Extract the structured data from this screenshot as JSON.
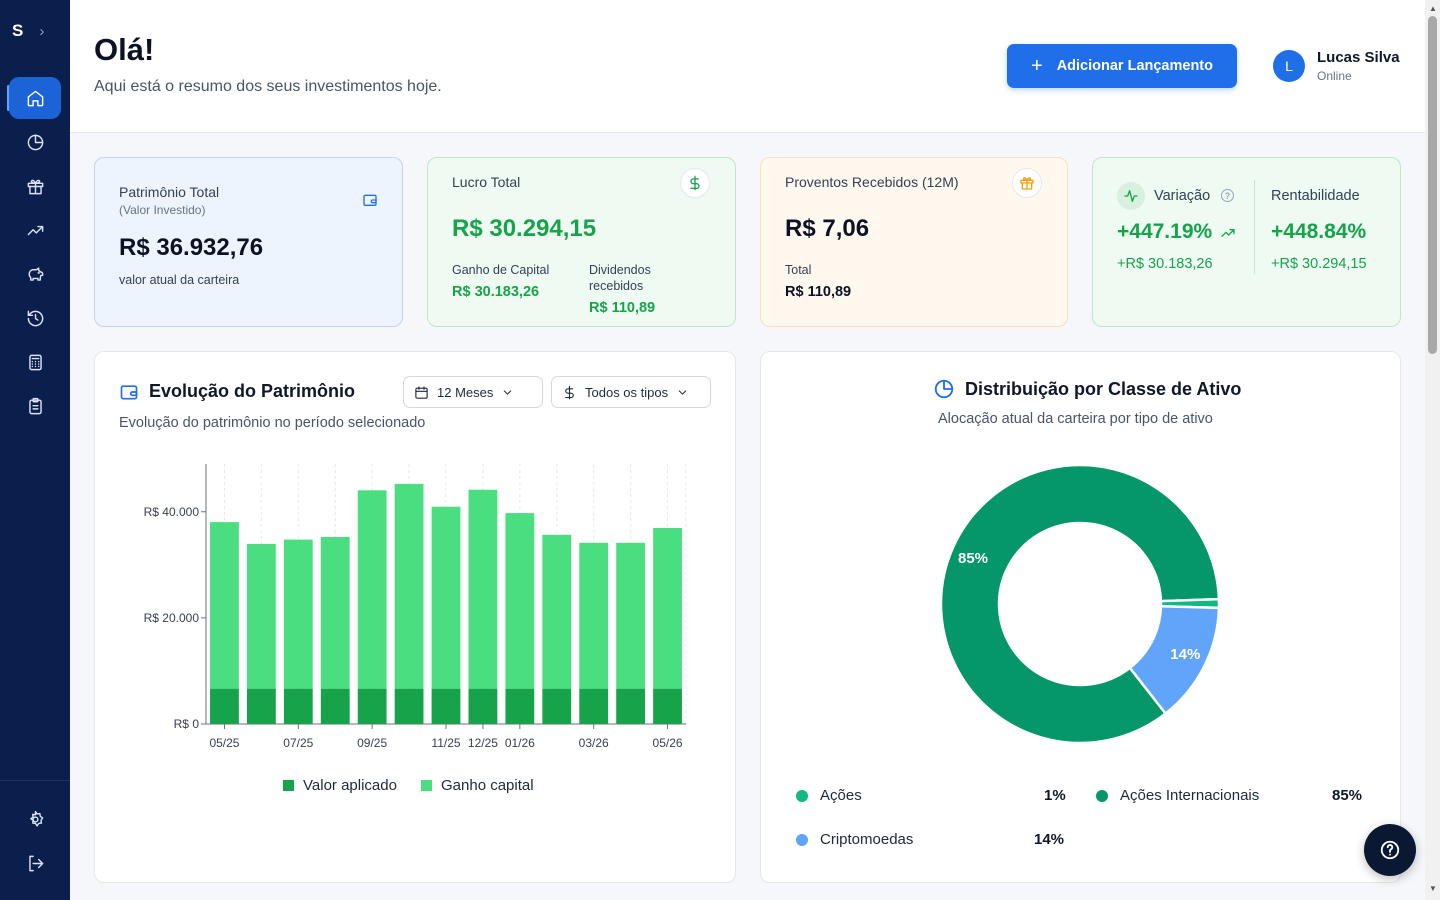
{
  "sidebar": {
    "logo": "S",
    "expand_icon": "chevron-right-icon",
    "nav_icons": [
      "home-icon",
      "pie-chart-icon",
      "gift-icon",
      "trending-up-icon",
      "piggy-bank-icon",
      "history-icon",
      "calculator-icon",
      "clipboard-icon"
    ],
    "bottom_icons": [
      "settings-icon",
      "logout-icon"
    ]
  },
  "header": {
    "greeting": "Olá!",
    "subtitle": "Aqui está o resumo dos seus investimentos hoje.",
    "add_button": "Adicionar Lançamento",
    "user": {
      "initial": "L",
      "name": "Lucas Silva",
      "status": "Online"
    }
  },
  "cards": {
    "patrimonio": {
      "title": "Patrimônio Total",
      "subtitle": "(Valor Investido)",
      "value": "R$ 36.932,76",
      "caption": "valor atual da carteira"
    },
    "lucro": {
      "title": "Lucro Total",
      "value": "R$ 30.294,15",
      "ganho_label": "Ganho de Capital",
      "ganho_value": "R$ 30.183,26",
      "dividendos_label_1": "Dividendos",
      "dividendos_label_2": "recebidos",
      "dividendos_value": "R$ 110,89"
    },
    "proventos": {
      "title": "Proventos Recebidos (12M)",
      "value": "R$ 7,06",
      "total_label": "Total",
      "total_value": "R$ 110,89"
    },
    "variacao": {
      "title": "Variação",
      "value": "+447.19%",
      "sub": "+R$ 30.183,26",
      "rent_title": "Rentabilidade",
      "rent_value": "+448.84%",
      "rent_sub": "+R$ 30.294,15"
    }
  },
  "evolucao": {
    "title": "Evolução do Patrimônio",
    "subtitle": "Evolução do patrimônio no período selecionado",
    "period_select": "12 Meses",
    "type_select": "Todos os tipos"
  },
  "distribuicao": {
    "title": "Distribuição por Classe de Ativo",
    "subtitle": "Alocação atual da carteira por tipo de ativo",
    "legend": [
      {
        "name": "Ações",
        "pct": "1%",
        "color": "#10b981"
      },
      {
        "name": "Ações Internacionais",
        "pct": "85%",
        "color": "#059669"
      },
      {
        "name": "Criptomoedas",
        "pct": "14%",
        "color": "#60a5fa"
      }
    ]
  },
  "chart_data": [
    {
      "type": "bar",
      "stacked": true,
      "categories": [
        "05/25",
        "06/25",
        "07/25",
        "08/25",
        "09/25",
        "10/25",
        "11/25",
        "12/25",
        "01/26",
        "02/26",
        "03/26",
        "04/26",
        "05/26"
      ],
      "tick_labels": [
        "05/25",
        "07/25",
        "09/25",
        "11/25",
        "12/25",
        "01/26",
        "03/26",
        "05/26"
      ],
      "series": [
        {
          "name": "Valor aplicado",
          "color": "#16a34a",
          "values": [
            6650,
            6650,
            6650,
            6650,
            6650,
            6650,
            6650,
            6650,
            6650,
            6650,
            6650,
            6650,
            6650
          ]
        },
        {
          "name": "Ganho capital",
          "color": "#4ade80",
          "values": [
            31400,
            27300,
            28100,
            28600,
            37400,
            38600,
            34300,
            37500,
            33100,
            29000,
            27500,
            27500,
            30300
          ]
        }
      ],
      "y_ticks": [
        "R$ 0",
        "R$ 20.000",
        "R$ 40.000"
      ],
      "ylim": [
        0,
        49000
      ],
      "grid": "vertical dashed",
      "legend_position": "bottom"
    },
    {
      "type": "pie",
      "donut": true,
      "slices": [
        {
          "name": "Ações Internacionais",
          "value": 85,
          "label": "85%",
          "color": "#059669"
        },
        {
          "name": "Ações",
          "value": 1,
          "label": "",
          "color": "#10b981"
        },
        {
          "name": "Criptomoedas",
          "value": 14,
          "label": "14%",
          "color": "#60a5fa"
        }
      ]
    }
  ]
}
